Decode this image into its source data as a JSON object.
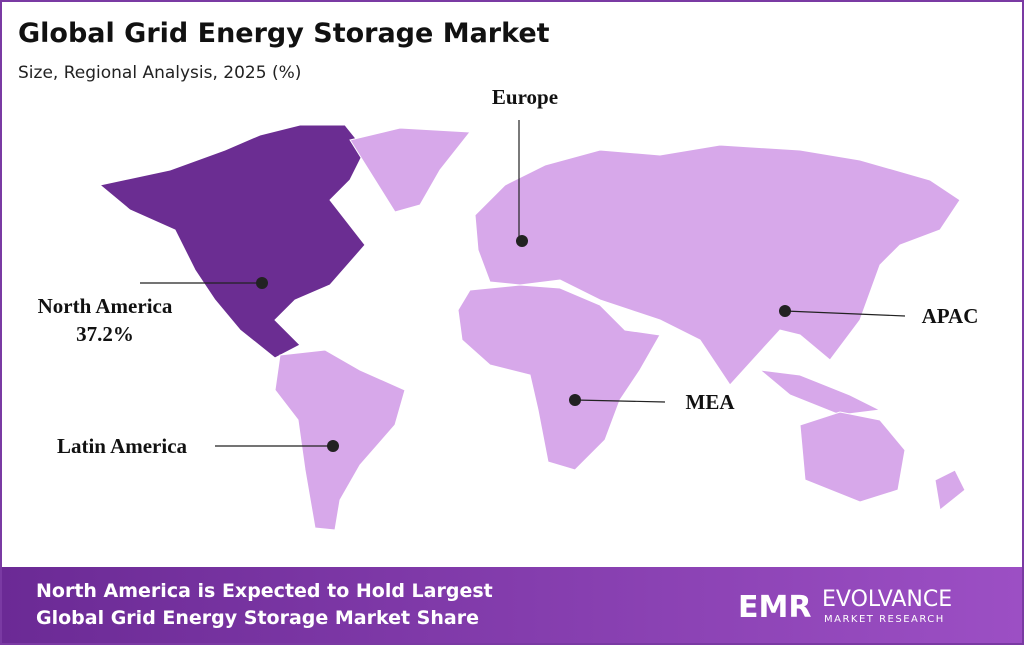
{
  "header": {
    "title": "Global Grid Energy Storage Market",
    "subtitle": "Size, Regional Analysis, 2025 (%)"
  },
  "regions": [
    {
      "name": "Europe"
    },
    {
      "name": "North America",
      "value_label": "37.2%"
    },
    {
      "name": "Latin America"
    },
    {
      "name": "MEA"
    },
    {
      "name": "APAC"
    }
  ],
  "footer": {
    "lines": [
      "North America is Expected to Hold Largest",
      "Global Grid Energy Storage Market Share"
    ],
    "logo": {
      "mark": "EMR",
      "name": "EVOLVANCE",
      "tagline": "MARKET RESEARCH"
    }
  }
}
